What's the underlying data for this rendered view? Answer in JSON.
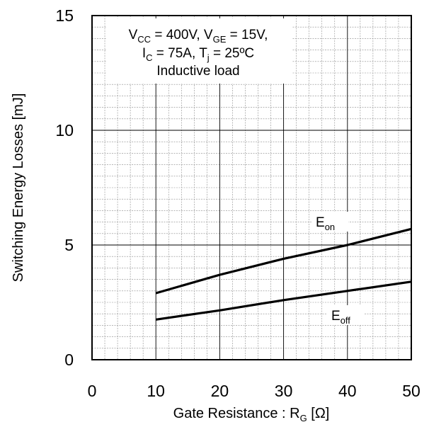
{
  "chart_data": {
    "type": "line",
    "xlabel": {
      "main": "Gate Resistance : R",
      "sub": "G",
      "unit": " [Ω]"
    },
    "ylabel": "Switching Energy Losses [mJ]",
    "xlim": [
      0,
      50
    ],
    "ylim": [
      0,
      15
    ],
    "xticks": [
      "0",
      "10",
      "20",
      "30",
      "40",
      "50"
    ],
    "yticks": [
      "0",
      "5",
      "10",
      "15"
    ],
    "grid": true,
    "conditions": {
      "line1": {
        "a": "V",
        "a_sub": "CC",
        "b": " = 400V, V",
        "b_sub": "GE",
        "c": " = 15V,"
      },
      "line2": {
        "a": "I",
        "a_sub": "C",
        "b": " = 75A, T",
        "b_sub": "j",
        "c": " = 25ºC"
      },
      "line3": "Inductive load"
    },
    "series": [
      {
        "name": "E",
        "name_sub": "on",
        "x": [
          10,
          20,
          30,
          40,
          50
        ],
        "y": [
          2.9,
          3.7,
          4.4,
          5.0,
          5.7
        ]
      },
      {
        "name": "E",
        "name_sub": "off",
        "x": [
          10,
          20,
          30,
          40,
          50
        ],
        "y": [
          1.75,
          2.15,
          2.6,
          3.0,
          3.4
        ]
      }
    ]
  }
}
